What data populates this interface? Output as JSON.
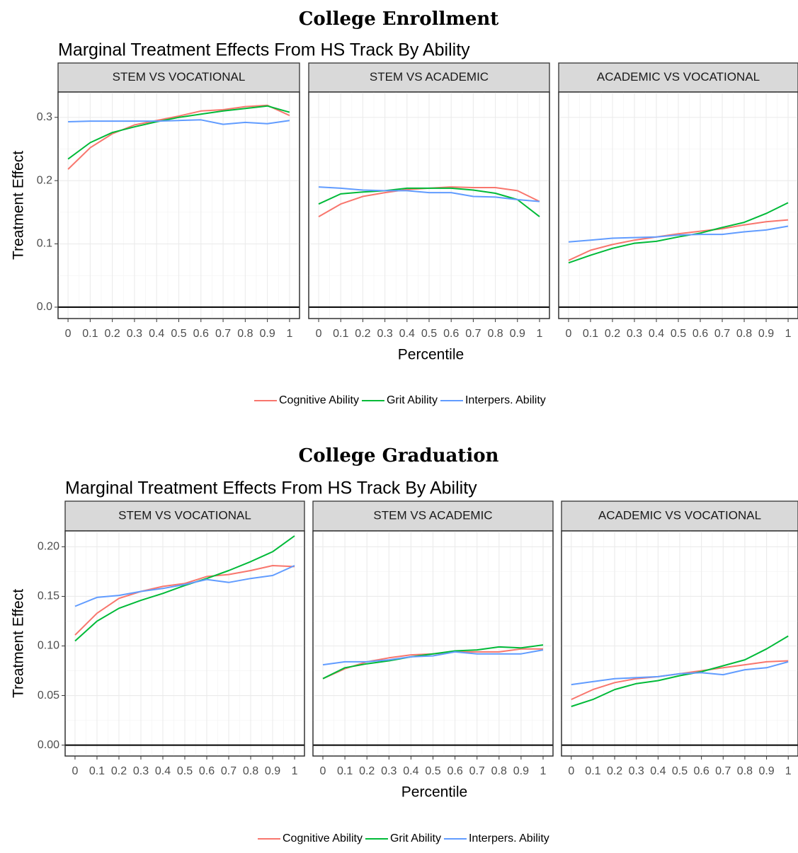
{
  "chart_data": [
    {
      "type": "line",
      "title": "College Enrollment",
      "subtitle": "Marginal Treatment Effects From HS Track By Ability",
      "xlabel": "Percentile",
      "ylabel": "Treatment Effect",
      "x": [
        0,
        0.1,
        0.2,
        0.3,
        0.4,
        0.5,
        0.6,
        0.7,
        0.8,
        0.9,
        1
      ],
      "x_tick_labels": [
        "0",
        "0.1",
        "0.2",
        "0.3",
        "0.4",
        "0.5",
        "0.6",
        "0.7",
        "0.8",
        "0.9",
        "1"
      ],
      "ylim": [
        -0.018,
        0.34
      ],
      "y_ticks": [
        0.0,
        0.1,
        0.2,
        0.3
      ],
      "y_tick_labels": [
        "0.0",
        "0.1",
        "0.2",
        "0.3"
      ],
      "legend_position": "bottom",
      "series_colors": {
        "Cognitive Ability": "#F8766D",
        "Grit Ability": "#00BA38",
        "Interpers. Ability": "#619CFF"
      },
      "facets": [
        {
          "label": "STEM VS VOCATIONAL",
          "series": [
            {
              "name": "Cognitive Ability",
              "values": [
                0.218,
                0.252,
                0.274,
                0.288,
                0.295,
                0.302,
                0.31,
                0.312,
                0.317,
                0.319,
                0.303
              ]
            },
            {
              "name": "Grit Ability",
              "values": [
                0.234,
                0.26,
                0.276,
                0.285,
                0.293,
                0.3,
                0.305,
                0.31,
                0.314,
                0.318,
                0.308
              ]
            },
            {
              "name": "Interpers. Ability",
              "values": [
                0.293,
                0.294,
                0.294,
                0.294,
                0.294,
                0.295,
                0.296,
                0.289,
                0.292,
                0.29,
                0.295
              ]
            }
          ]
        },
        {
          "label": "STEM VS ACADEMIC",
          "series": [
            {
              "name": "Cognitive Ability",
              "values": [
                0.143,
                0.163,
                0.175,
                0.181,
                0.186,
                0.188,
                0.19,
                0.189,
                0.189,
                0.184,
                0.167
              ]
            },
            {
              "name": "Grit Ability",
              "values": [
                0.163,
                0.179,
                0.182,
                0.184,
                0.188,
                0.188,
                0.188,
                0.185,
                0.18,
                0.17,
                0.143
              ]
            },
            {
              "name": "Interpers. Ability",
              "values": [
                0.19,
                0.188,
                0.185,
                0.184,
                0.184,
                0.181,
                0.181,
                0.175,
                0.174,
                0.17,
                0.167
              ]
            }
          ]
        },
        {
          "label": "ACADEMIC VS VOCATIONAL",
          "series": [
            {
              "name": "Cognitive Ability",
              "values": [
                0.074,
                0.09,
                0.099,
                0.106,
                0.111,
                0.116,
                0.12,
                0.124,
                0.13,
                0.135,
                0.138
              ]
            },
            {
              "name": "Grit Ability",
              "values": [
                0.07,
                0.082,
                0.093,
                0.101,
                0.104,
                0.111,
                0.117,
                0.126,
                0.134,
                0.148,
                0.165
              ]
            },
            {
              "name": "Interpers. Ability",
              "values": [
                0.103,
                0.106,
                0.109,
                0.11,
                0.111,
                0.114,
                0.115,
                0.115,
                0.119,
                0.122,
                0.128
              ]
            }
          ]
        }
      ]
    },
    {
      "type": "line",
      "title": "College Graduation",
      "subtitle": "Marginal Treatment Effects From HS Track By Ability",
      "xlabel": "Percentile",
      "ylabel": "Treatment Effect",
      "x": [
        0,
        0.1,
        0.2,
        0.3,
        0.4,
        0.5,
        0.6,
        0.7,
        0.8,
        0.9,
        1
      ],
      "x_tick_labels": [
        "0",
        "0.1",
        "0.2",
        "0.3",
        "0.4",
        "0.5",
        "0.6",
        "0.7",
        "0.8",
        "0.9",
        "1"
      ],
      "ylim": [
        -0.011,
        0.216
      ],
      "y_ticks": [
        0.0,
        0.05,
        0.1,
        0.15,
        0.2
      ],
      "y_tick_labels": [
        "0.00",
        "0.05",
        "0.10",
        "0.15",
        "0.20"
      ],
      "legend_position": "bottom",
      "series_colors": {
        "Cognitive Ability": "#F8766D",
        "Grit Ability": "#00BA38",
        "Interpers. Ability": "#619CFF"
      },
      "facets": [
        {
          "label": "STEM VS VOCATIONAL",
          "series": [
            {
              "name": "Cognitive Ability",
              "values": [
                0.111,
                0.133,
                0.148,
                0.155,
                0.16,
                0.163,
                0.17,
                0.172,
                0.176,
                0.181,
                0.18
              ]
            },
            {
              "name": "Grit Ability",
              "values": [
                0.105,
                0.125,
                0.138,
                0.146,
                0.153,
                0.161,
                0.168,
                0.176,
                0.185,
                0.195,
                0.211
              ]
            },
            {
              "name": "Interpers. Ability",
              "values": [
                0.14,
                0.149,
                0.151,
                0.155,
                0.158,
                0.162,
                0.167,
                0.164,
                0.168,
                0.171,
                0.181
              ]
            }
          ]
        },
        {
          "label": "STEM VS ACADEMIC",
          "series": [
            {
              "name": "Cognitive Ability",
              "values": [
                0.067,
                0.077,
                0.084,
                0.088,
                0.091,
                0.092,
                0.094,
                0.094,
                0.094,
                0.097,
                0.097
              ]
            },
            {
              "name": "Grit Ability",
              "values": [
                0.067,
                0.078,
                0.082,
                0.085,
                0.089,
                0.092,
                0.095,
                0.096,
                0.099,
                0.098,
                0.101
              ]
            },
            {
              "name": "Interpers. Ability",
              "values": [
                0.081,
                0.084,
                0.084,
                0.086,
                0.089,
                0.09,
                0.094,
                0.092,
                0.092,
                0.092,
                0.096
              ]
            }
          ]
        },
        {
          "label": "ACADEMIC VS VOCATIONAL",
          "series": [
            {
              "name": "Cognitive Ability",
              "values": [
                0.046,
                0.056,
                0.063,
                0.067,
                0.069,
                0.072,
                0.075,
                0.078,
                0.081,
                0.084,
                0.085
              ]
            },
            {
              "name": "Grit Ability",
              "values": [
                0.039,
                0.046,
                0.056,
                0.062,
                0.065,
                0.07,
                0.074,
                0.08,
                0.086,
                0.097,
                0.11
              ]
            },
            {
              "name": "Interpers. Ability",
              "values": [
                0.061,
                0.064,
                0.067,
                0.068,
                0.069,
                0.072,
                0.073,
                0.071,
                0.076,
                0.078,
                0.084
              ]
            }
          ]
        }
      ]
    }
  ]
}
